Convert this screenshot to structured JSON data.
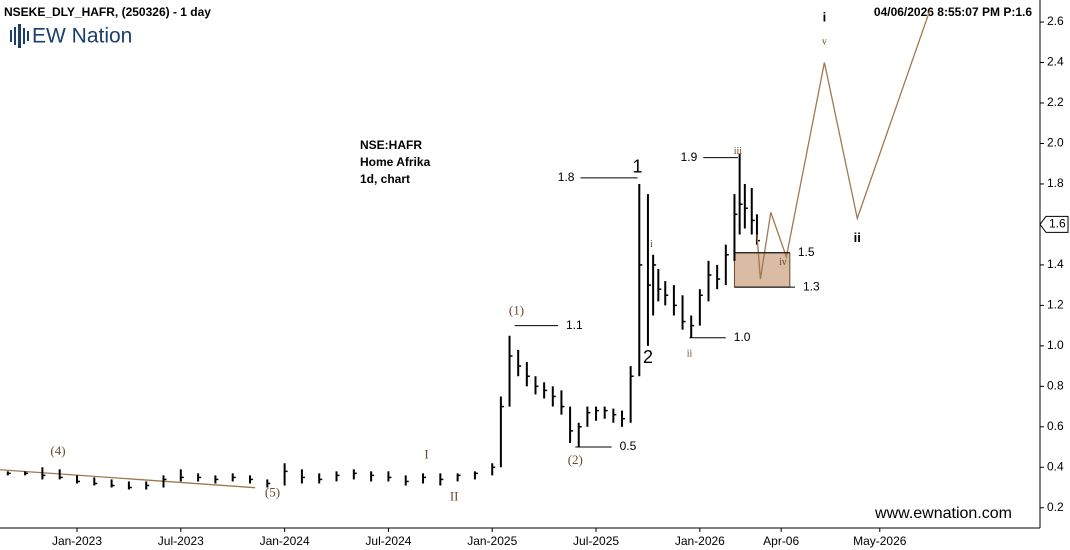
{
  "header": {
    "symbol": "NSEKE_DLY_HAFR, (250326) - 1 day",
    "timestamp": "04/06/2026 8:55:07 PM  P:1.6",
    "logo": "EW Nation",
    "info": [
      "NSE:HAFR",
      "Home Afrika",
      "1d, chart"
    ],
    "website": "www.ewnation.com"
  },
  "chart_data": {
    "type": "ohlc",
    "x": [
      -4,
      -3,
      -2,
      -1,
      0,
      1,
      2,
      3,
      4,
      5,
      6,
      7,
      8,
      9,
      10,
      11,
      12,
      13,
      14,
      15,
      16,
      17,
      18,
      19,
      20,
      21,
      22,
      23,
      24,
      24.5,
      25,
      25.5,
      26,
      26.5,
      27,
      27.5,
      28,
      28.5,
      29,
      29.5,
      30,
      30.5,
      31,
      31.5,
      32,
      32.5,
      33,
      33.3,
      33.6,
      34,
      34.5,
      35,
      35.5,
      36,
      36.5,
      37,
      37.5,
      38,
      38.3,
      38.6,
      39,
      39.3
    ],
    "high": [
      0.38,
      0.38,
      0.4,
      0.39,
      0.36,
      0.35,
      0.34,
      0.33,
      0.33,
      0.36,
      0.39,
      0.37,
      0.36,
      0.37,
      0.36,
      0.34,
      0.42,
      0.39,
      0.37,
      0.38,
      0.39,
      0.38,
      0.38,
      0.36,
      0.37,
      0.37,
      0.37,
      0.38,
      0.42,
      0.75,
      1.05,
      0.98,
      0.92,
      0.85,
      0.82,
      0.8,
      0.78,
      0.7,
      0.62,
      0.7,
      0.7,
      0.7,
      0.69,
      0.68,
      0.9,
      1.8,
      1.75,
      1.45,
      1.38,
      1.32,
      1.3,
      1.25,
      1.15,
      1.28,
      1.42,
      1.4,
      1.5,
      1.75,
      1.95,
      1.8,
      1.78,
      1.65
    ],
    "low": [
      0.36,
      0.36,
      0.34,
      0.34,
      0.32,
      0.31,
      0.3,
      0.29,
      0.29,
      0.3,
      0.33,
      0.33,
      0.32,
      0.33,
      0.32,
      0.3,
      0.31,
      0.32,
      0.32,
      0.33,
      0.34,
      0.33,
      0.33,
      0.31,
      0.32,
      0.31,
      0.33,
      0.34,
      0.36,
      0.4,
      0.7,
      0.85,
      0.8,
      0.76,
      0.74,
      0.7,
      0.66,
      0.52,
      0.5,
      0.6,
      0.63,
      0.64,
      0.62,
      0.6,
      0.62,
      0.85,
      1.0,
      1.15,
      1.22,
      1.2,
      1.15,
      1.08,
      1.04,
      1.1,
      1.22,
      1.28,
      1.3,
      1.42,
      1.55,
      1.58,
      1.55,
      1.5
    ],
    "close": [
      0.37,
      0.37,
      0.36,
      0.35,
      0.33,
      0.32,
      0.31,
      0.3,
      0.31,
      0.34,
      0.35,
      0.35,
      0.34,
      0.35,
      0.34,
      0.32,
      0.38,
      0.35,
      0.34,
      0.36,
      0.37,
      0.36,
      0.35,
      0.33,
      0.35,
      0.34,
      0.36,
      0.37,
      0.4,
      0.7,
      0.95,
      0.9,
      0.85,
      0.8,
      0.78,
      0.75,
      0.7,
      0.58,
      0.6,
      0.67,
      0.68,
      0.68,
      0.66,
      0.64,
      0.85,
      1.4,
      1.3,
      1.4,
      1.28,
      1.25,
      1.2,
      1.12,
      1.1,
      1.25,
      1.35,
      1.33,
      1.45,
      1.65,
      1.7,
      1.68,
      1.62,
      1.52
    ],
    "color": "#000000",
    "projection": {
      "x": [
        39.3,
        39.5,
        40.1,
        41.0,
        43.2,
        45.1,
        49.3
      ],
      "values": [
        1.55,
        1.33,
        1.66,
        1.44,
        2.4,
        1.63,
        2.66
      ],
      "color": "#a07850"
    },
    "trendline": {
      "x": [
        -4.45,
        10.3
      ],
      "values": [
        0.388,
        0.299
      ],
      "color": "#a07850"
    },
    "levels": [
      {
        "value": 1.1,
        "label": "1.1",
        "x": [
          25.3,
          27.8
        ]
      },
      {
        "value": 1.83,
        "label": "1.8",
        "x": [
          29.1,
          32.4
        ]
      },
      {
        "value": 1.93,
        "label": "1.9",
        "x": [
          36.2,
          38.2
        ]
      },
      {
        "value": 1.04,
        "label": "1.0",
        "x": [
          35.4,
          37.5
        ]
      },
      {
        "value": 0.5,
        "label": "0.5",
        "x": [
          28.8,
          30.9
        ]
      },
      {
        "value": 1.46,
        "label": "1.5",
        "x": [
          38.0,
          41.2
        ]
      },
      {
        "value": 1.29,
        "label": "1.3",
        "x": [
          38.0,
          41.5
        ]
      }
    ],
    "zone_color": "#d9bca3",
    "wave_labels": [
      {
        "text": "(4)",
        "x": -1.1,
        "y": 0.476
      },
      {
        "text": "(5)",
        "x": 11.3,
        "y": 0.27
      },
      {
        "text": "I",
        "x": 20.2,
        "y": 0.457
      },
      {
        "text": "II",
        "x": 21.8,
        "y": 0.25
      },
      {
        "text": "(1)",
        "x": 25.4,
        "y": 1.17
      },
      {
        "text": "(2)",
        "x": 28.8,
        "y": 0.43
      },
      {
        "text": "1",
        "x": 32.4,
        "y": 1.88
      },
      {
        "text": "2",
        "x": 33.0,
        "y": 0.94
      },
      {
        "text": "i",
        "x": 33.2,
        "y": 1.5
      },
      {
        "text": "ii",
        "x": 35.4,
        "y": 0.96
      },
      {
        "text": "iii",
        "x": 38.2,
        "y": 1.96
      },
      {
        "text": "iv",
        "x": 40.8,
        "y": 1.41
      },
      {
        "text": "v",
        "x": 43.2,
        "y": 2.5
      },
      {
        "text": "i",
        "x": 43.2,
        "y": 2.62
      },
      {
        "text": "ii",
        "x": 45.1,
        "y": 1.53
      }
    ],
    "last_price": 1.6,
    "xlim": [
      -4.45,
      55.66
    ],
    "xticks": [
      {
        "value": 0,
        "label": "Jan-2023"
      },
      {
        "value": 6,
        "label": "Jul-2023"
      },
      {
        "value": 12,
        "label": "Jan-2024"
      },
      {
        "value": 18,
        "label": "Jul-2024"
      },
      {
        "value": 24,
        "label": "Jan-2025"
      },
      {
        "value": 30,
        "label": "Jul-2025"
      },
      {
        "value": 36,
        "label": "Jan-2026"
      },
      {
        "value": 40.7,
        "label": "Apr-06"
      },
      {
        "value": 46.4,
        "label": "May-2026"
      }
    ],
    "ylim": [
      0.1,
      2.709
    ],
    "yticks": [
      0.2,
      0.4,
      0.6,
      0.8,
      {
        "value": 1,
        "label": "1.0"
      },
      1.2,
      1.4,
      1.6,
      1.8,
      {
        "value": 2,
        "label": "2.0"
      },
      2.2,
      2.4,
      2.6
    ]
  }
}
